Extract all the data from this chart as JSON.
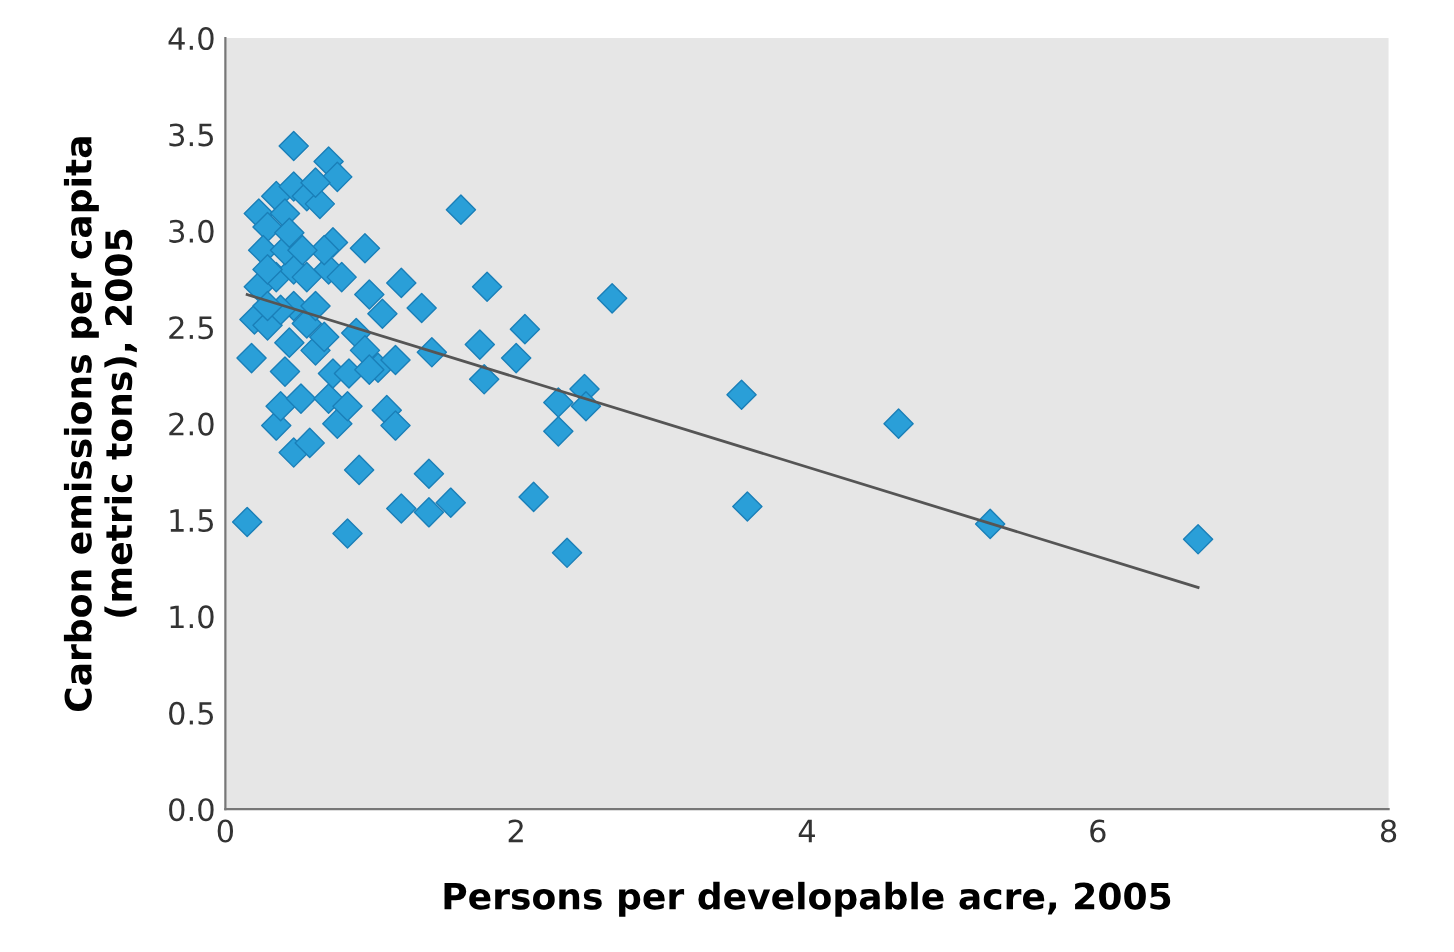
{
  "chart_data": {
    "type": "scatter",
    "xlabel": "Persons per developable acre, 2005",
    "ylabel": "Carbon emissions per capita\n(metric tons), 2005",
    "xlim": [
      0,
      8
    ],
    "ylim": [
      0,
      4.0
    ],
    "xticks": [
      0,
      2,
      4,
      6,
      8
    ],
    "yticks": [
      {
        "value": 0,
        "label": "0.0"
      },
      {
        "value": 0.5,
        "label": "0.5"
      },
      {
        "value": 1,
        "label": "1.0"
      },
      {
        "value": 1.5,
        "label": "1.5"
      },
      {
        "value": 2,
        "label": "2.0"
      },
      {
        "value": 2.5,
        "label": "2.5"
      },
      {
        "value": 3,
        "label": "3.0"
      },
      {
        "value": 3.5,
        "label": "3.5"
      },
      {
        "value": 4,
        "label": "4.0"
      }
    ],
    "grid": false,
    "legend": false,
    "marker": "diamond",
    "series": [
      {
        "color": "#2a9fd8",
        "x": [
          0.15,
          0.47,
          0.71,
          0.77,
          1.62,
          1.8,
          2.66,
          2.06,
          2.0,
          1.75,
          1.78,
          1.42,
          1.21,
          1.35,
          0.96,
          0.99,
          1.08,
          1.05,
          1.17,
          1.11,
          1.17,
          0.92,
          0.84,
          1.21,
          1.4,
          1.55,
          1.4,
          2.12,
          2.35,
          2.29,
          2.29,
          2.47,
          2.48,
          3.55,
          3.59,
          4.63,
          5.26,
          6.69,
          0.18,
          0.35,
          0.47,
          0.58,
          0.38,
          0.52,
          0.41,
          0.44,
          0.62,
          0.71,
          0.77,
          0.84,
          0.74,
          0.85,
          0.9,
          0.96,
          0.2,
          0.29,
          0.56,
          0.68,
          0.23,
          0.35,
          0.47,
          0.56,
          0.47,
          0.38,
          0.29,
          0.62,
          0.71,
          0.8,
          0.74,
          0.68,
          0.23,
          0.29,
          0.35,
          0.41,
          0.47,
          0.56,
          0.65,
          0.62,
          0.26,
          0.41,
          0.44,
          0.29,
          0.53,
          0.99
        ],
        "values": [
          1.49,
          3.44,
          3.36,
          3.28,
          3.11,
          2.71,
          2.65,
          2.49,
          2.34,
          2.41,
          2.23,
          2.37,
          2.73,
          2.6,
          2.91,
          2.67,
          2.57,
          2.29,
          2.33,
          2.07,
          1.99,
          1.76,
          1.43,
          1.56,
          1.54,
          1.59,
          1.74,
          1.62,
          1.33,
          2.11,
          1.96,
          2.18,
          2.09,
          2.15,
          1.57,
          2.0,
          1.48,
          1.4,
          2.34,
          1.99,
          1.85,
          1.9,
          2.09,
          2.13,
          2.27,
          2.42,
          2.38,
          2.13,
          2.0,
          2.09,
          2.26,
          2.26,
          2.47,
          2.38,
          2.54,
          2.51,
          2.52,
          2.45,
          2.71,
          2.76,
          2.8,
          2.76,
          2.61,
          2.59,
          2.61,
          2.61,
          2.8,
          2.76,
          2.94,
          2.9,
          3.09,
          3.02,
          3.18,
          3.09,
          3.23,
          3.18,
          3.14,
          3.25,
          2.9,
          2.9,
          2.99,
          2.8,
          2.9,
          2.28
        ]
      },
      {
        "type": "line",
        "color": "#555555",
        "marker": "none",
        "line_style": "solid",
        "x": [
          0.15,
          6.69
        ],
        "values": [
          2.67,
          1.15
        ]
      }
    ]
  }
}
